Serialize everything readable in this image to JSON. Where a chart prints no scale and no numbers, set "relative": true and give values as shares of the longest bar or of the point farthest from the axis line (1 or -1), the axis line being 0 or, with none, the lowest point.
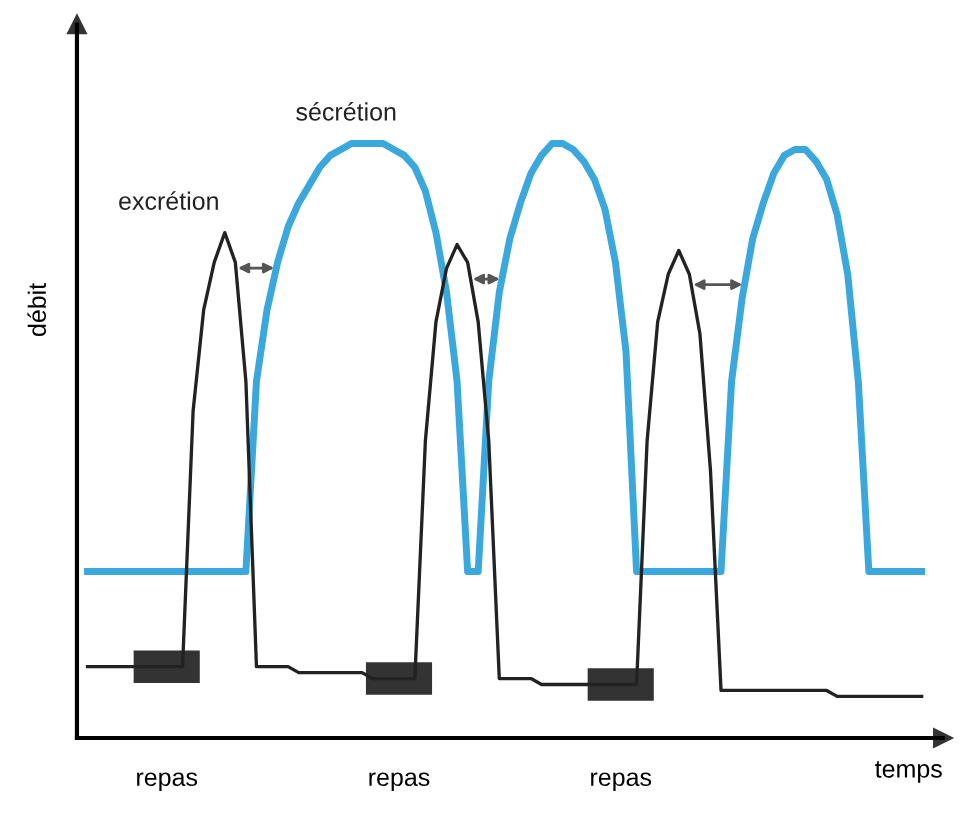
{
  "chart_data": {
    "type": "line",
    "relative": true,
    "xlabel": "temps",
    "ylabel": "débit",
    "categories": [
      null,
      null,
      null,
      null,
      null,
      null,
      null,
      null,
      null,
      null,
      null,
      null,
      null,
      null,
      null,
      null,
      null,
      null,
      null,
      null,
      null,
      null,
      null,
      null,
      null,
      null,
      null,
      null,
      null,
      null,
      null,
      null,
      null,
      null,
      null,
      null,
      null,
      null,
      null,
      null,
      null,
      null,
      null,
      null,
      null,
      null,
      null,
      null,
      null,
      null,
      null,
      null,
      null,
      null,
      null,
      null,
      null,
      null,
      null,
      null,
      null,
      null,
      null,
      null,
      null,
      null,
      null,
      null,
      null,
      null,
      null,
      null,
      null,
      null,
      null,
      null,
      null,
      null,
      null,
      null
    ],
    "series": [
      {
        "name": "sécrétion",
        "color": "#3aa8dc",
        "values": [
          0.28,
          0.28,
          0.28,
          0.28,
          0.28,
          0.28,
          0.28,
          0.28,
          0.28,
          0.28,
          0.28,
          0.28,
          0.28,
          0.28,
          0.28,
          0.28,
          0.6,
          0.72,
          0.8,
          0.86,
          0.9,
          0.93,
          0.96,
          0.98,
          0.99,
          1.0,
          1.0,
          1.0,
          1.0,
          0.99,
          0.98,
          0.96,
          0.92,
          0.85,
          0.75,
          0.6,
          0.28,
          0.28,
          0.6,
          0.75,
          0.84,
          0.9,
          0.95,
          0.98,
          1.0,
          1.0,
          0.99,
          0.97,
          0.94,
          0.89,
          0.8,
          0.65,
          0.28,
          0.28,
          0.28,
          0.28,
          0.28,
          0.28,
          0.28,
          0.28,
          0.28,
          0.6,
          0.74,
          0.84,
          0.9,
          0.95,
          0.98,
          0.99,
          0.99,
          0.97,
          0.94,
          0.88,
          0.78,
          0.6,
          0.28,
          0.28,
          0.28,
          0.28,
          0.28,
          0.28
        ]
      },
      {
        "name": "excrétion",
        "color": "#222222",
        "values": [
          0.12,
          0.12,
          0.12,
          0.12,
          0.12,
          0.12,
          0.12,
          0.12,
          0.12,
          0.12,
          0.55,
          0.72,
          0.8,
          0.85,
          0.8,
          0.6,
          0.12,
          0.12,
          0.12,
          0.12,
          0.11,
          0.11,
          0.11,
          0.11,
          0.11,
          0.11,
          0.11,
          0.1,
          0.1,
          0.1,
          0.1,
          0.1,
          0.5,
          0.7,
          0.79,
          0.83,
          0.8,
          0.7,
          0.5,
          0.1,
          0.1,
          0.1,
          0.1,
          0.09,
          0.09,
          0.09,
          0.09,
          0.09,
          0.09,
          0.09,
          0.09,
          0.09,
          0.09,
          0.5,
          0.7,
          0.78,
          0.82,
          0.78,
          0.68,
          0.45,
          0.08,
          0.08,
          0.08,
          0.08,
          0.08,
          0.08,
          0.08,
          0.08,
          0.08,
          0.08,
          0.08,
          0.07,
          0.07,
          0.07,
          0.07,
          0.07,
          0.07,
          0.07,
          0.07,
          0.07
        ]
      }
    ],
    "annotations": [
      "repas",
      "repas",
      "repas"
    ]
  }
}
